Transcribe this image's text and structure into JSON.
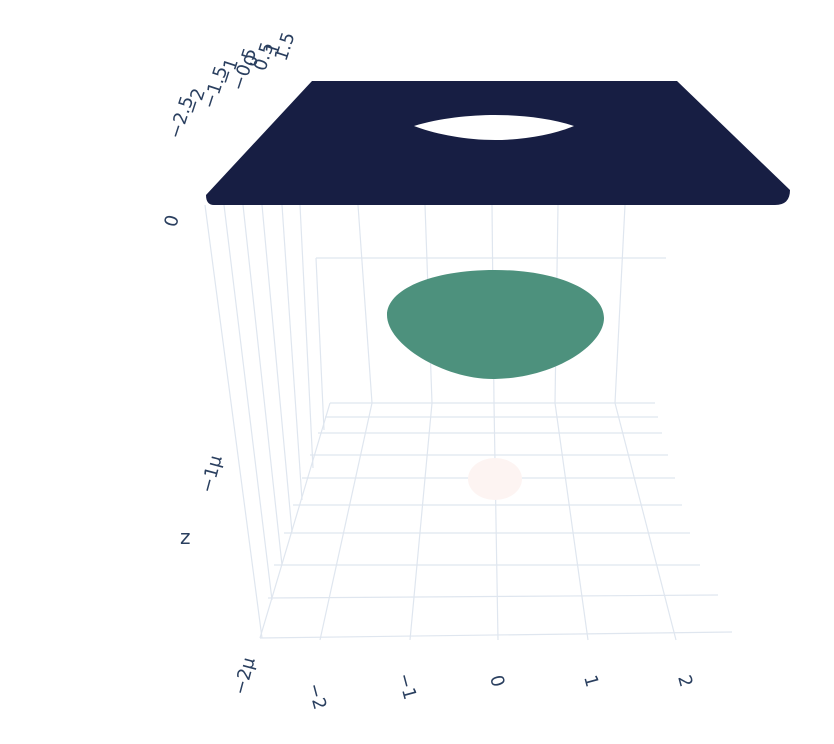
{
  "chart_data": {
    "type": "surface",
    "title": "",
    "scene": {
      "xaxis": {
        "title": "",
        "ticks": [
          "−2",
          "−1",
          "0",
          "1",
          "2"
        ]
      },
      "yaxis": {
        "title": "",
        "ticks": [
          "−2.5",
          "−2",
          "−1.5",
          "−1",
          "−0.5",
          "0",
          "0.5",
          "1",
          "1.5"
        ]
      },
      "zaxis": {
        "title": "z",
        "ticks": [
          "0",
          "−1μ",
          "−2μ"
        ]
      },
      "grid": true
    },
    "surfaces": [
      {
        "name": "",
        "level": "0",
        "color": "#171e43",
        "shape": "flat square sheet with an elliptical opening"
      },
      {
        "name": "",
        "level": "−0.5μ",
        "color": "#4d917d",
        "shape": "elliptical disc"
      },
      {
        "name": "",
        "level": "−1.2μ",
        "color": "#fdf4f2",
        "shape": "small disc"
      }
    ]
  }
}
